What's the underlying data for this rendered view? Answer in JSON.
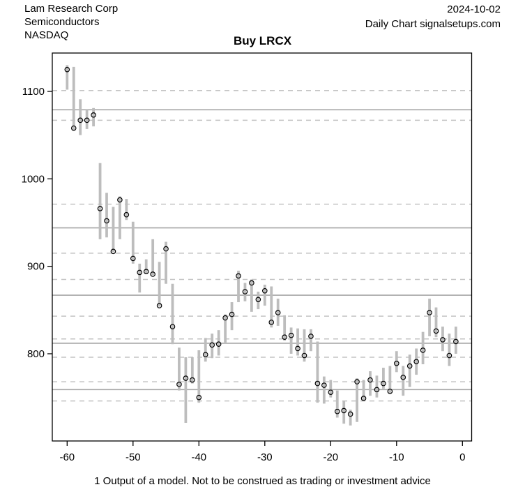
{
  "header": {
    "company": "Lam Research Corp",
    "sector": "Semiconductors",
    "exchange": "NASDAQ",
    "date": "2024-10-02",
    "source": "Daily Chart signalsetups.com"
  },
  "title": "Buy LRCX",
  "footnote": "1 Output of a model. Not to be construed as trading or investment advice",
  "colors": {
    "background": "#ffffff",
    "axis": "#000000",
    "bar": "#bdbdbd",
    "marker_stroke": "#000000",
    "solid_level_line": "#a6a6a6",
    "dashed_level_line": "#c3c3c3",
    "text": "#000000"
  },
  "chart_data": {
    "type": "scatter",
    "subtype": "daily-price-range-with-close-markers",
    "title": "Buy LRCX",
    "xlabel": "",
    "ylabel": "",
    "xlim": [
      -63.4,
      1.4
    ],
    "ylim": [
      710,
      1155
    ],
    "x_ticks": [
      -60,
      -50,
      -40,
      -30,
      -20,
      -10,
      0
    ],
    "y_ticks": [
      800,
      900,
      1000,
      1100
    ],
    "grid": false,
    "legend": "none",
    "point_marker": "open-circle",
    "reference_lines": {
      "solid": [
        1079,
        944,
        867,
        812,
        759
      ],
      "dashed": [
        1101,
        1067,
        971,
        915,
        885,
        843,
        817,
        796,
        768,
        746
      ]
    },
    "days": [
      -60,
      -59,
      -58,
      -57,
      -56,
      -55,
      -54,
      -53,
      -52,
      -51,
      -50,
      -49,
      -48,
      -47,
      -46,
      -45,
      -44,
      -43,
      -42,
      -41,
      -40,
      -39,
      -38,
      -37,
      -36,
      -35,
      -34,
      -33,
      -32,
      -31,
      -30,
      -29,
      -28,
      -27,
      -26,
      -25,
      -24,
      -23,
      -22,
      -21,
      -20,
      -19,
      -18,
      -17,
      -16,
      -15,
      -14,
      -13,
      -12,
      -11,
      -10,
      -9,
      -8,
      -7,
      -6,
      -5,
      -4,
      -3,
      -2,
      -1
    ],
    "close": [
      1125,
      1058,
      1067,
      1067,
      1073,
      966,
      952,
      917,
      976,
      959,
      909,
      893,
      894,
      891,
      855,
      920,
      831,
      765,
      772,
      770,
      750,
      799,
      810,
      811,
      841,
      845,
      889,
      871,
      881,
      862,
      872,
      836,
      847,
      819,
      821,
      806,
      798,
      820,
      766,
      764,
      756,
      734,
      735,
      731,
      768,
      749,
      770,
      759,
      766,
      757,
      789,
      773,
      786,
      791,
      804,
      847,
      826,
      816,
      798,
      814
    ],
    "high": [
      1130,
      1128,
      1091,
      1079,
      1081,
      1018,
      984,
      968,
      980,
      977,
      951,
      903,
      908,
      931,
      905,
      928,
      880,
      807,
      796,
      796,
      804,
      818,
      823,
      827,
      845,
      859,
      895,
      881,
      885,
      871,
      879,
      877,
      863,
      844,
      830,
      829,
      828,
      828,
      814,
      774,
      770,
      758,
      746,
      736,
      772,
      770,
      780,
      775,
      784,
      786,
      803,
      786,
      799,
      806,
      825,
      863,
      853,
      831,
      823,
      831
    ],
    "low": [
      1102,
      1056,
      1050,
      1057,
      1060,
      931,
      933,
      916,
      931,
      953,
      903,
      870,
      891,
      890,
      854,
      880,
      811,
      758,
      721,
      766,
      744,
      791,
      795,
      798,
      812,
      827,
      859,
      860,
      848,
      851,
      855,
      830,
      832,
      815,
      800,
      798,
      791,
      803,
      744,
      743,
      750,
      727,
      720,
      718,
      722,
      746,
      752,
      750,
      760,
      755,
      779,
      752,
      762,
      776,
      788,
      820,
      819,
      803,
      786,
      800
    ]
  }
}
